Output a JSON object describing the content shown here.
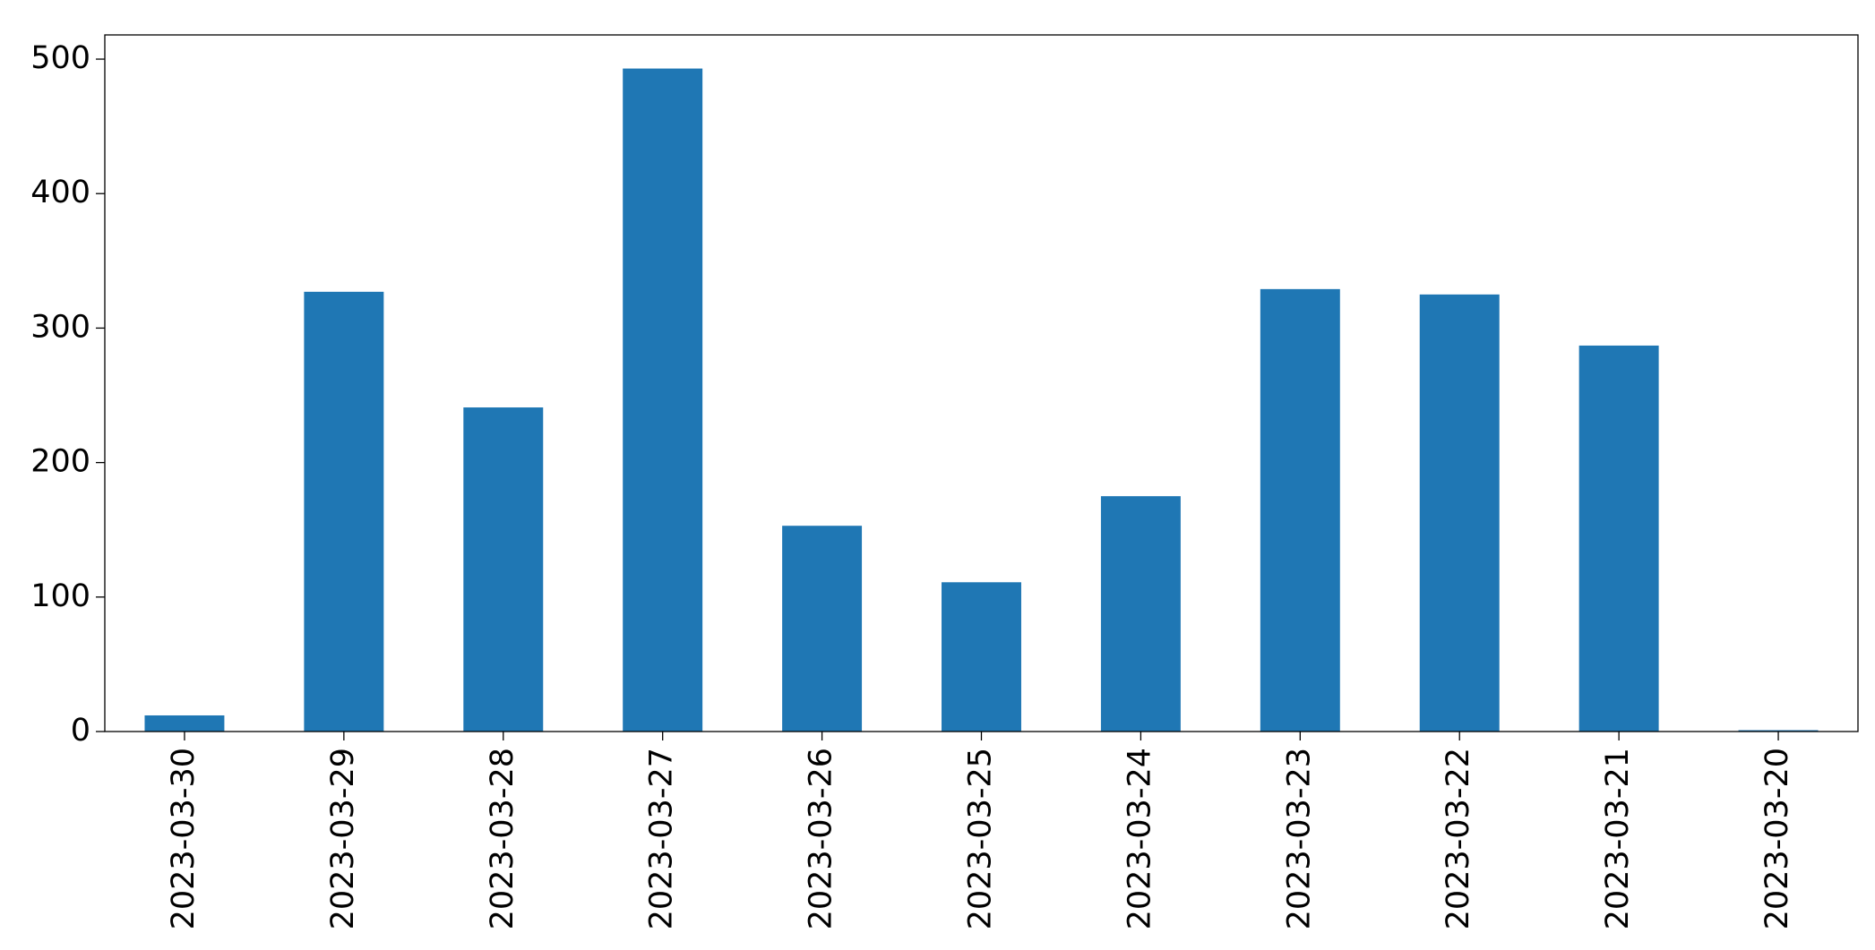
{
  "chart_data": {
    "type": "bar",
    "categories": [
      "2023-03-30",
      "2023-03-29",
      "2023-03-28",
      "2023-03-27",
      "2023-03-26",
      "2023-03-25",
      "2023-03-24",
      "2023-03-23",
      "2023-03-22",
      "2023-03-21",
      "2023-03-20"
    ],
    "values": [
      12,
      327,
      241,
      493,
      153,
      111,
      175,
      329,
      325,
      287,
      1
    ],
    "color": "#1f77b4",
    "ylim": [
      0,
      518
    ],
    "yticks": [
      0,
      100,
      200,
      300,
      400,
      500
    ],
    "grid": false
  }
}
